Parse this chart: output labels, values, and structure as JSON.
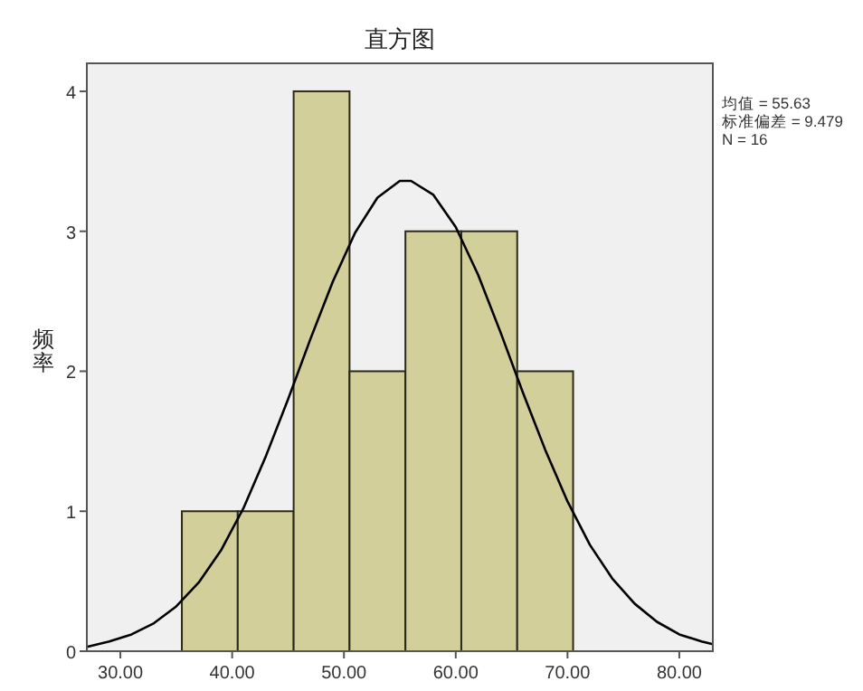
{
  "chart_data": {
    "type": "histogram",
    "title": "直方图",
    "ylabel": "频率",
    "annotations": [
      "均值 = 55.63",
      "标准偏差 = 9.479",
      "N = 16"
    ],
    "bins": [
      35.5,
      40.5,
      45.5,
      50.5,
      55.5,
      60.5,
      65.5,
      70.5
    ],
    "series": [
      {
        "color": "#d2cf9a",
        "values": [
          1,
          1,
          4,
          2,
          3,
          3,
          2
        ]
      },
      {
        "type": "line",
        "color": "#000000",
        "x": [
          27,
          29,
          31,
          33,
          35,
          37,
          39,
          41,
          43,
          45,
          47,
          49,
          51,
          53,
          55,
          56,
          58,
          60,
          62,
          64,
          66,
          68,
          70,
          72,
          74,
          76,
          78,
          80,
          82,
          83
        ],
        "values": [
          0.03,
          0.07,
          0.12,
          0.2,
          0.32,
          0.49,
          0.72,
          1.02,
          1.39,
          1.8,
          2.23,
          2.64,
          2.99,
          3.24,
          3.36,
          3.36,
          3.26,
          3.03,
          2.69,
          2.28,
          1.85,
          1.44,
          1.07,
          0.76,
          0.52,
          0.34,
          0.21,
          0.12,
          0.07,
          0.05
        ]
      }
    ],
    "xlim": [
      27,
      83
    ],
    "ylim": [
      0,
      4.2
    ],
    "xticks": [
      {
        "value": 30,
        "label": "30.00"
      },
      {
        "value": 40,
        "label": "40.00"
      },
      {
        "value": 50,
        "label": "50.00"
      },
      {
        "value": 60,
        "label": "60.00"
      },
      {
        "value": 70,
        "label": "70.00"
      },
      {
        "value": 80,
        "label": "80.00"
      }
    ],
    "yticks": [
      0,
      1,
      2,
      3,
      4
    ],
    "grid": false,
    "marker": "none"
  }
}
